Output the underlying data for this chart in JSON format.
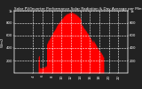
{
  "title": "Solar PV/Inverter Performance Solar Radiation & Day Average per Minute",
  "title_fontsize": 3.0,
  "bg_color": "#222222",
  "plot_bg_color": "#222222",
  "fill_color": "#ff0000",
  "line_color": "#ff0000",
  "grid_color": "#ffffff",
  "grid_style": "--",
  "ylim": [
    0,
    1000
  ],
  "xlim": [
    0,
    1440
  ],
  "yticks": [
    200,
    400,
    600,
    800,
    1000
  ],
  "ytick_labels": [
    "200",
    "400",
    "600",
    "800",
    "1k"
  ],
  "xtick_positions": [
    240,
    360,
    480,
    600,
    720,
    840,
    960,
    1080,
    1200,
    1320
  ],
  "xtick_labels": [
    "4",
    "6",
    "8",
    "10",
    "12",
    "14",
    "16",
    "18",
    "20",
    "22"
  ],
  "tick_fontsize": 2.8,
  "ylabel_left": "W/m2",
  "ylabel_fontsize": 2.8,
  "outer_bg": "#222222"
}
